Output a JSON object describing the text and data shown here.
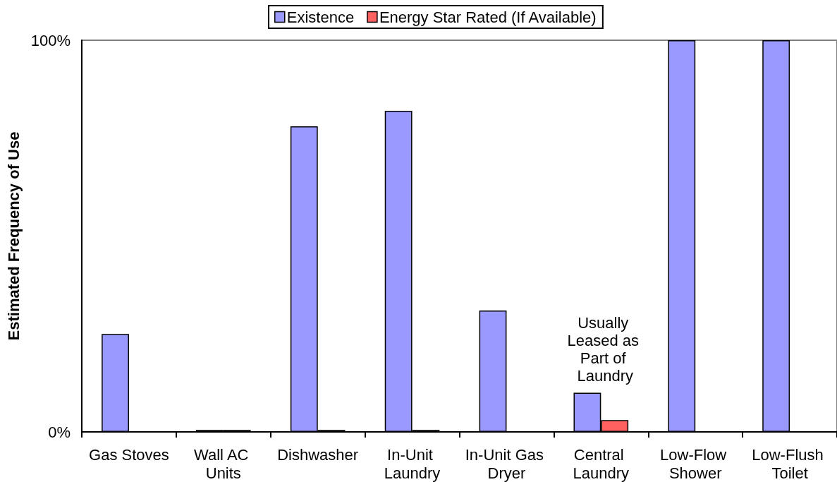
{
  "chart_data": {
    "type": "bar",
    "ylabel": "Estimated Frequency of Use",
    "categories": [
      "Gas Stoves",
      "Wall AC Units",
      "Dishwasher",
      "In-Unit Laundry",
      "In-Unit Gas Dryer",
      "Central Laundry",
      "Low-Flow Shower",
      "Low-Flush Toilet"
    ],
    "series": [
      {
        "name": "Existence",
        "color": "#9999ff",
        "values": [
          25,
          0.5,
          78,
          82,
          31,
          10,
          100,
          100
        ]
      },
      {
        "name": "Energy Star Rated (If Available)",
        "color": "#ff6060",
        "values": [
          null,
          0.5,
          0.5,
          0.5,
          null,
          3,
          null,
          null
        ]
      }
    ],
    "ylim": [
      0,
      100
    ],
    "yticks": [
      {
        "value": 0,
        "label": "0%"
      },
      {
        "value": 100,
        "label": "100%"
      }
    ],
    "legend": "top",
    "annotations": [
      {
        "text": "Usually Leased as Part of Laundry",
        "x": "Central Laundry",
        "y": 10
      }
    ]
  }
}
